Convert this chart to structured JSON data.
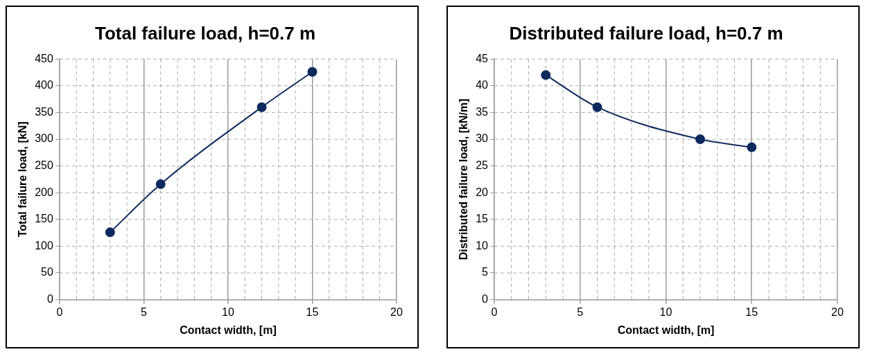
{
  "chart_data": [
    {
      "type": "line",
      "title": "Total failure load, h=0.7 m",
      "xlabel": "Contact width, [m]",
      "ylabel": "Total failure load, [kN]",
      "x": [
        3,
        6,
        12,
        15
      ],
      "series": [
        {
          "color": "#0d2a5e",
          "values": [
            126,
            216,
            360,
            426
          ]
        }
      ],
      "xlim": [
        0,
        20
      ],
      "xticks": [
        0,
        {
          "value": 1,
          "label": null
        },
        {
          "value": 2,
          "label": null
        },
        {
          "value": 3,
          "label": null
        },
        {
          "value": 4,
          "label": null
        },
        5,
        {
          "value": 6,
          "label": null
        },
        {
          "value": 7,
          "label": null
        },
        {
          "value": 8,
          "label": null
        },
        {
          "value": 9,
          "label": null
        },
        10,
        {
          "value": 11,
          "label": null
        },
        {
          "value": 12,
          "label": null
        },
        {
          "value": 13,
          "label": null
        },
        {
          "value": 14,
          "label": null
        },
        15,
        {
          "value": 16,
          "label": null
        },
        {
          "value": 17,
          "label": null
        },
        {
          "value": 18,
          "label": null
        },
        {
          "value": 19,
          "label": null
        },
        20
      ],
      "ylim": [
        0,
        450
      ],
      "yticks": [
        0,
        50,
        100,
        150,
        200,
        250,
        300,
        350,
        400,
        450
      ],
      "grid": true,
      "legend": false,
      "marker": "circle",
      "line_style": "solid"
    },
    {
      "type": "line",
      "title": "Distributed failure load, h=0.7 m",
      "xlabel": "Contact width, [m]",
      "ylabel": "Distributed failure load, [kN/m]",
      "x": [
        3,
        6,
        12,
        15
      ],
      "series": [
        {
          "color": "#0d2a5e",
          "values": [
            42,
            36,
            30,
            28.5
          ]
        }
      ],
      "xlim": [
        0,
        20
      ],
      "xticks": [
        0,
        {
          "value": 1,
          "label": null
        },
        {
          "value": 2,
          "label": null
        },
        {
          "value": 3,
          "label": null
        },
        {
          "value": 4,
          "label": null
        },
        5,
        {
          "value": 6,
          "label": null
        },
        {
          "value": 7,
          "label": null
        },
        {
          "value": 8,
          "label": null
        },
        {
          "value": 9,
          "label": null
        },
        10,
        {
          "value": 11,
          "label": null
        },
        {
          "value": 12,
          "label": null
        },
        {
          "value": 13,
          "label": null
        },
        {
          "value": 14,
          "label": null
        },
        15,
        {
          "value": 16,
          "label": null
        },
        {
          "value": 17,
          "label": null
        },
        {
          "value": 18,
          "label": null
        },
        {
          "value": 19,
          "label": null
        },
        20
      ],
      "ylim": [
        0,
        45
      ],
      "yticks": [
        0,
        5,
        10,
        15,
        20,
        25,
        30,
        35,
        40,
        45
      ],
      "grid": true,
      "legend": false,
      "marker": "circle",
      "line_style": "solid"
    }
  ]
}
